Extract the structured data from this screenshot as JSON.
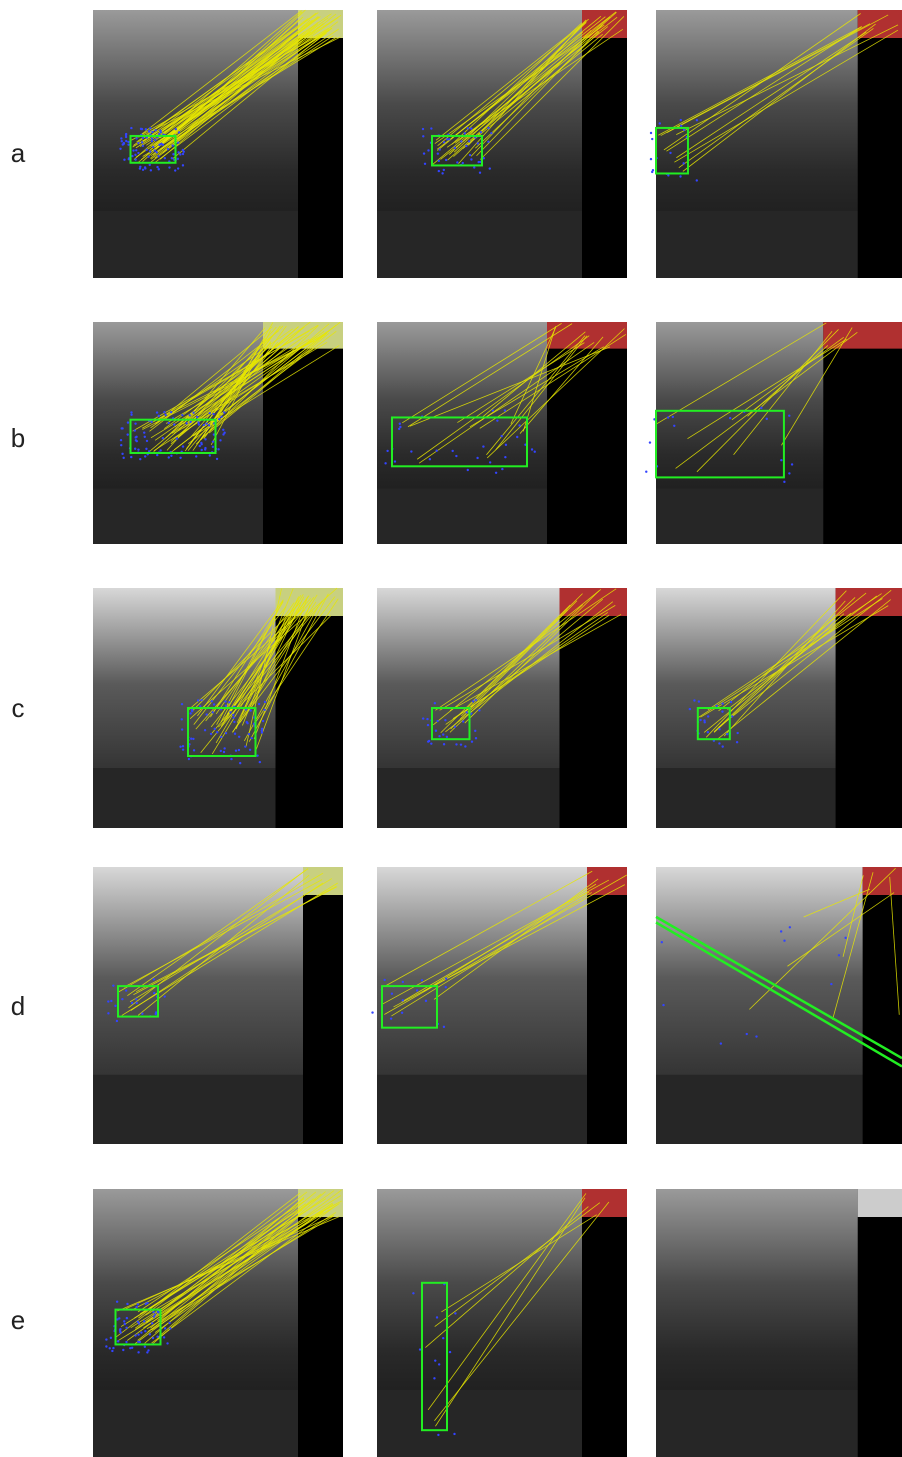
{
  "labels": [
    "a",
    "b",
    "c",
    "d",
    "e"
  ]
}
